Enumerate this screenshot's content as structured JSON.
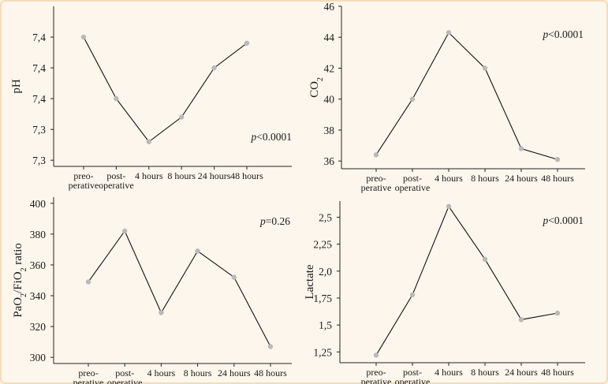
{
  "chart_data": [
    {
      "type": "line",
      "categories": [
        [
          "preo-",
          "perative"
        ],
        [
          "post-",
          "operative"
        ],
        [
          "4 hours"
        ],
        [
          "8 hours"
        ],
        [
          "24 hours"
        ],
        [
          "48 hours"
        ]
      ],
      "series": [
        {
          "values": [
            7.45,
            7.35,
            7.28,
            7.32,
            7.4,
            7.44
          ]
        }
      ],
      "ylabel": "pH",
      "ylabel_parts": [
        {
          "t": "pH",
          "sub": false
        }
      ],
      "ylim": [
        7.24,
        7.5
      ],
      "yticks": [
        7.25,
        7.3,
        7.35,
        7.4,
        7.45
      ],
      "ytick_labels": [
        "7,3",
        "7,3",
        "7,4",
        "7,4",
        "7,4"
      ],
      "annotation": {
        "prefix": "p",
        "value": "<0.0001",
        "pos": "bottom-right"
      },
      "grid": false
    },
    {
      "type": "line",
      "categories": [
        [
          "preo-",
          "perative"
        ],
        [
          "post-",
          "operative"
        ],
        [
          "4 hours"
        ],
        [
          "8 hours"
        ],
        [
          "24 hours"
        ],
        [
          "48 hours"
        ]
      ],
      "series": [
        {
          "values": [
            36.4,
            40.0,
            44.3,
            42.0,
            36.8,
            36.1
          ]
        }
      ],
      "ylabel": "CO2",
      "ylabel_parts": [
        {
          "t": "CO",
          "sub": false
        },
        {
          "t": "2",
          "sub": true
        }
      ],
      "ylim": [
        35.5,
        46.0
      ],
      "yticks": [
        36,
        38,
        40,
        42,
        44,
        46
      ],
      "ytick_labels": [
        "36",
        "38",
        "40",
        "42",
        "44",
        "46"
      ],
      "annotation": {
        "prefix": "p",
        "value": "<0.0001",
        "pos": "top-right"
      },
      "grid": false
    },
    {
      "type": "line",
      "categories": [
        [
          "preo-",
          "perative"
        ],
        [
          "post-",
          "operative"
        ],
        [
          "4 hours"
        ],
        [
          "8 hours"
        ],
        [
          "24 hours"
        ],
        [
          "48 hours"
        ]
      ],
      "series": [
        {
          "values": [
            349,
            382,
            329,
            369,
            352,
            307
          ]
        }
      ],
      "ylabel": "PaO2/FiO2 ratio",
      "ylabel_parts": [
        {
          "t": "PaO",
          "sub": false
        },
        {
          "t": "2",
          "sub": true
        },
        {
          "t": "/FiO",
          "sub": false
        },
        {
          "t": "2",
          "sub": true
        },
        {
          "t": " ratio",
          "sub": false
        }
      ],
      "ylim": [
        296,
        404
      ],
      "yticks": [
        300,
        320,
        340,
        360,
        380,
        400
      ],
      "ytick_labels": [
        "300",
        "320",
        "340",
        "360",
        "380",
        "400"
      ],
      "annotation": {
        "prefix": "p",
        "value": "=0.26",
        "pos": "top-right"
      },
      "grid": false
    },
    {
      "type": "line",
      "categories": [
        [
          "preo-",
          "perative"
        ],
        [
          "post-",
          "operative"
        ],
        [
          "4 hours"
        ],
        [
          "8 hours"
        ],
        [
          "24 hours"
        ],
        [
          "48 hours"
        ]
      ],
      "series": [
        {
          "values": [
            1.22,
            1.78,
            2.6,
            2.11,
            1.55,
            1.61
          ]
        }
      ],
      "ylabel": "Lactate",
      "ylabel_parts": [
        {
          "t": "Lactate",
          "sub": false
        }
      ],
      "ylim": [
        1.15,
        2.65
      ],
      "yticks": [
        1.25,
        1.5,
        1.75,
        2.0,
        2.25,
        2.5
      ],
      "ytick_labels": [
        "1,25",
        "1,5",
        "1,75",
        "2,0",
        "2,25",
        "2,5"
      ],
      "annotation": {
        "prefix": "p",
        "value": "<0.0001",
        "pos": "top-right"
      },
      "grid": false
    }
  ]
}
